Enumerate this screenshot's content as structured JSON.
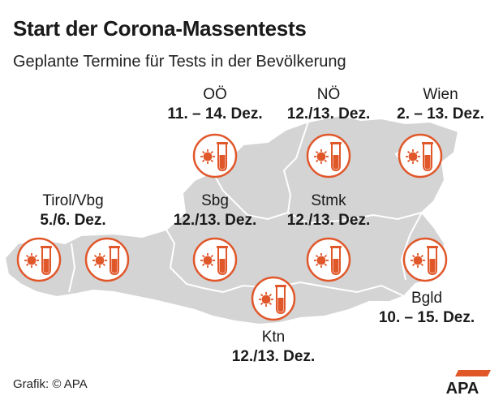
{
  "title": "Start der Corona-Massentests",
  "subtitle": "Geplante Termine für Tests in der Bevölkerung",
  "regions": [
    {
      "id": "ooe",
      "name": "OÖ",
      "date": "11. – 14. Dez."
    },
    {
      "id": "noe",
      "name": "NÖ",
      "date": "12./13. Dez."
    },
    {
      "id": "wien",
      "name": "Wien",
      "date": "2. – 13. Dez."
    },
    {
      "id": "tirol",
      "name": "Tirol/Vbg",
      "date": "5./6. Dez."
    },
    {
      "id": "sbg",
      "name": "Sbg",
      "date": "12./13. Dez."
    },
    {
      "id": "stmk",
      "name": "Stmk",
      "date": "12./13. Dez."
    },
    {
      "id": "bgld",
      "name": "Bgld",
      "date": "10. – 15. Dez."
    },
    {
      "id": "ktn",
      "name": "Ktn",
      "date": "12./13. Dez."
    }
  ],
  "icon": "test-tube-virus-icon",
  "colors": {
    "map_fill": "#d4d4d4",
    "map_stroke": "#ffffff",
    "accent": "#e0572a",
    "icon_bg": "#ffffff"
  },
  "source": "Grafik: © APA",
  "logo_text": "APA"
}
